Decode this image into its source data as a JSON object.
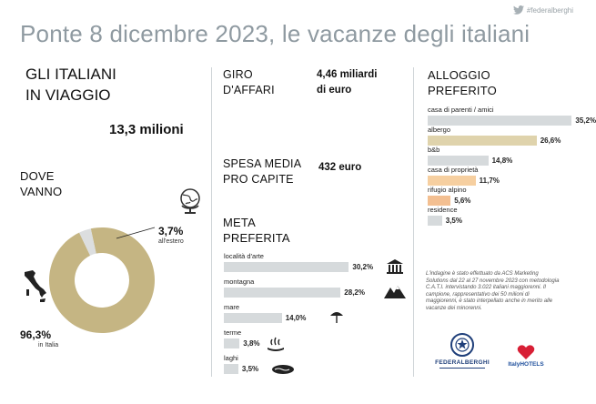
{
  "header": {
    "hashtag": "#federalberghi",
    "title": "Ponte 8 dicembre 2023, le vacanze degli italiani"
  },
  "travelers": {
    "label_line1": "GLI ITALIANI",
    "label_line2": "IN VIAGGIO",
    "value": "13,3 milioni"
  },
  "where": {
    "label_line1": "DOVE",
    "label_line2": "VANNO",
    "abroad_pct": "3,7%",
    "abroad_label": "all'estero",
    "italy_pct": "96,3%",
    "italy_label": "in Italia"
  },
  "business": {
    "label_line1": "GIRO",
    "label_line2": "D'AFFARI",
    "value_line1": "4,46 miliardi",
    "value_line2": "di euro"
  },
  "spending": {
    "label_line1": "SPESA MEDIA",
    "label_line2": "PRO CAPITE",
    "value": "432 euro"
  },
  "destination": {
    "label_line1": "META",
    "label_line2": "PREFERITA"
  },
  "lodging": {
    "label_line1": "ALLOGGIO",
    "label_line2": "PREFERITO"
  },
  "note_text": "L'indagine è stato effettuato da ACS Marketing Solutions dal 22 al 27 novembre 2023 con metodologia C.A.T.I. intervistando 3.022 italiani maggiorenni. Il campione, rappresentativo dei 50 milioni di maggiorenni, è stato interpellato anche in merito alle vacanze dei minorenni.",
  "logos": {
    "federalberghi": "FEDERALBERGHI",
    "italyhotels": "ItalyHOTELS"
  },
  "chart_data": [
    {
      "type": "pie",
      "categories": [
        "in Italia",
        "all'estero"
      ],
      "values": [
        96.3,
        3.7
      ],
      "colors": [
        "#c5b583",
        "#dcdedf"
      ]
    },
    {
      "type": "bar",
      "orientation": "horizontal",
      "categories": [
        "località d'arte",
        "montagna",
        "mare",
        "terme",
        "laghi"
      ],
      "values": [
        30.2,
        28.2,
        14.0,
        3.8,
        3.5
      ],
      "labels": [
        "30,2%",
        "28,2%",
        "14,0%",
        "3,8%",
        "3,5%"
      ],
      "icons": [
        "museum-icon",
        "mountain-icon",
        "umbrella-icon",
        "spa-icon",
        "lake-icon"
      ],
      "color": "#d6dadc"
    },
    {
      "type": "bar",
      "orientation": "horizontal",
      "categories": [
        "casa di parenti / amici",
        "albergo",
        "b&b",
        "casa di proprietà",
        "rifugio alpino",
        "residence"
      ],
      "values": [
        35.2,
        26.6,
        14.8,
        11.7,
        5.6,
        3.5
      ],
      "labels": [
        "35,2%",
        "26,6%",
        "14,8%",
        "11,7%",
        "5,6%",
        "3,5%"
      ],
      "colors": [
        "#d6dadc",
        "#dfd3ac",
        "#d6dadc",
        "#f6cfa0",
        "#f3bf91",
        "#d6dadc"
      ]
    }
  ]
}
